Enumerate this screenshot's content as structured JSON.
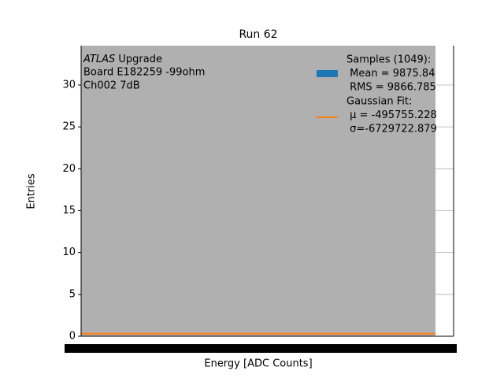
{
  "chart_data": {
    "type": "histogram",
    "title": "Run 62",
    "xlabel": "Energy [ADC Counts]",
    "ylabel": "Entries",
    "ylim": [
      0,
      34.7
    ],
    "yticks": [
      0,
      5,
      10,
      15,
      20,
      25,
      30
    ],
    "grid": true,
    "annotation": {
      "italic": "ATLAS",
      "first": " Upgrade",
      "lines": [
        "Board E182259 -99ohm",
        "Ch002 7dB"
      ]
    },
    "fit": {
      "color": "#ff7f0e",
      "y": 0.3
    },
    "legend": {
      "position": "upper right",
      "entries": [
        {
          "color": "#1f77b4",
          "lines": [
            "Samples (1049):",
            " Mean = 9875.84",
            " RMS = 9866.785"
          ]
        },
        {
          "color": "#ff7f0e",
          "lines": [
            "Gaussian Fit:",
            " μ = -495755.228",
            " σ=-6729722.879"
          ]
        }
      ]
    }
  }
}
